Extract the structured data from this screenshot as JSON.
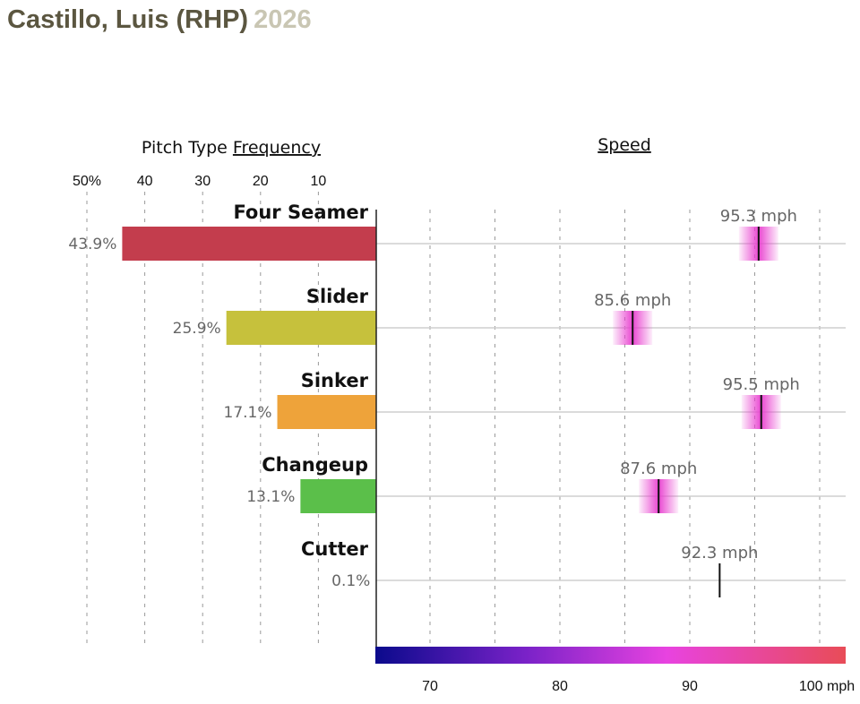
{
  "header": {
    "name": "Castillo, Luis (RHP)",
    "year": "2026"
  },
  "chart_data": {
    "type": "bar",
    "categories": [
      "Four Seamer",
      "Slider",
      "Sinker",
      "Changeup",
      "Cutter"
    ],
    "frequency": {
      "title_prefix": "Pitch Type ",
      "title_link": "Frequency",
      "values": [
        43.9,
        25.9,
        17.1,
        13.1,
        0.1
      ],
      "value_labels": [
        "43.9%",
        "25.9%",
        "17.1%",
        "13.1%",
        "0.1%"
      ],
      "tick_values": [
        50,
        40,
        30,
        20,
        10
      ],
      "tick_labels": [
        "50%",
        "40",
        "30",
        "20",
        "10"
      ],
      "xlim": [
        0,
        50
      ],
      "colors": [
        "#c33d4d",
        "#c6c13c",
        "#eea33a",
        "#5bbf4a",
        "#cccccc"
      ]
    },
    "speed": {
      "title": "Speed",
      "values": [
        95.3,
        85.6,
        95.5,
        87.6,
        92.3
      ],
      "value_labels": [
        "95.3 mph",
        "85.6 mph",
        "95.5 mph",
        "87.6 mph",
        "92.3 mph"
      ],
      "tick_values": [
        70,
        80,
        90,
        100
      ],
      "tick_labels": [
        "70",
        "80",
        "90",
        "100 mph"
      ],
      "xlim": [
        66,
        102
      ],
      "has_spread_band": [
        true,
        true,
        true,
        true,
        false
      ],
      "band_color": "#e83ecf",
      "colorbar": [
        "#0b0a8c",
        "#7a22c8",
        "#e843e0",
        "#e84c57"
      ]
    },
    "grid": true
  }
}
